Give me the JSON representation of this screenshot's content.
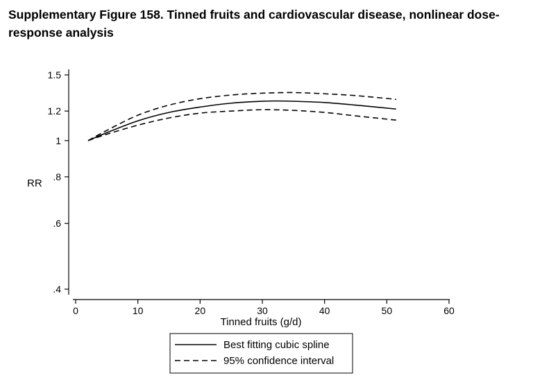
{
  "figure": {
    "title": "Supplementary Figure 158. Tinned fruits and cardiovascular disease, nonlinear dose-response analysis"
  },
  "chart_data": {
    "type": "line",
    "xlabel": "Tinned fruits (g/d)",
    "ylabel": "RR",
    "xlim": [
      0,
      60
    ],
    "ylim": [
      0.4,
      1.5
    ],
    "y_scale": "log",
    "x_ticks": [
      0,
      10,
      20,
      30,
      40,
      50,
      60
    ],
    "x_tick_labels": [
      "0",
      "10",
      "20",
      "30",
      "40",
      "50",
      "60"
    ],
    "y_ticks": [
      0.4,
      0.6,
      0.8,
      1,
      1.2,
      1.5
    ],
    "y_tick_labels": [
      ".4",
      ".6",
      ".8",
      "1",
      "1.2",
      "1.5"
    ],
    "grid": false,
    "legend_position": "bottom",
    "series": [
      {
        "name": "Best fitting cubic spline",
        "style": "solid",
        "color": "#000000",
        "x": [
          2,
          5,
          10,
          15,
          20,
          25,
          30,
          32.5,
          35,
          40,
          45,
          51.5
        ],
        "y": [
          1.0,
          1.05,
          1.13,
          1.19,
          1.23,
          1.26,
          1.275,
          1.277,
          1.275,
          1.265,
          1.245,
          1.215
        ]
      },
      {
        "name": "95% confidence interval",
        "style": "dashed",
        "color": "#000000",
        "x": [
          2,
          5,
          10,
          15,
          20,
          25,
          30,
          35,
          40,
          45,
          51.5
        ],
        "y": [
          1.0,
          1.065,
          1.17,
          1.245,
          1.295,
          1.325,
          1.34,
          1.345,
          1.335,
          1.32,
          1.29
        ]
      },
      {
        "name": "",
        "style": "dashed",
        "color": "#000000",
        "x": [
          2,
          5,
          10,
          15,
          20,
          25,
          30,
          35,
          40,
          45,
          51.5
        ],
        "y": [
          1.0,
          1.04,
          1.1,
          1.15,
          1.185,
          1.2,
          1.21,
          1.205,
          1.19,
          1.165,
          1.135
        ]
      }
    ],
    "legend": [
      {
        "label": "Best fitting cubic spline",
        "style": "solid"
      },
      {
        "label": "95% confidence interval",
        "style": "dashed"
      }
    ]
  }
}
